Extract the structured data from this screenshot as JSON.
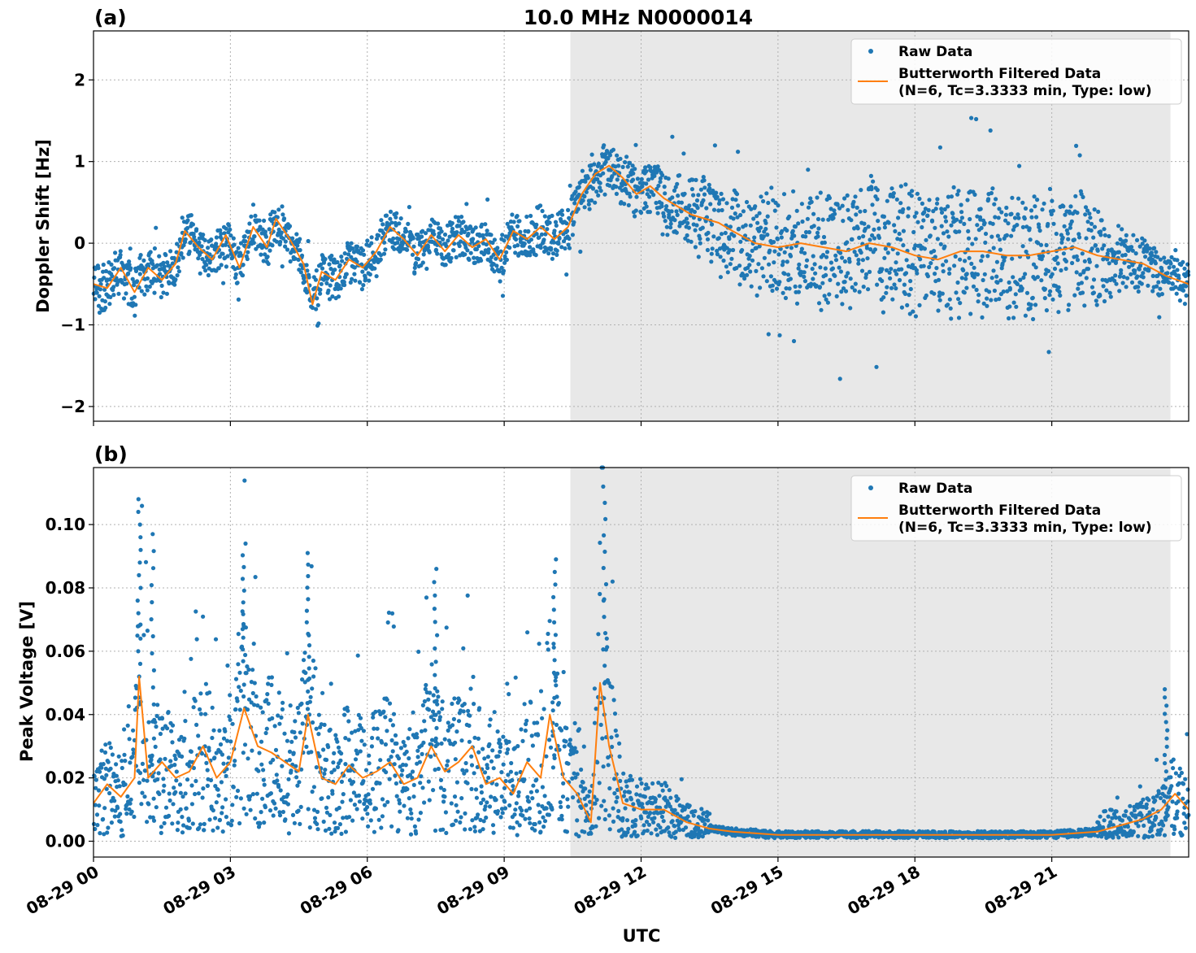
{
  "title": "10.0 MHz N0000014",
  "xlabel": "UTC",
  "x_tick_labels": [
    "08-29 00",
    "08-29 03",
    "08-29 06",
    "08-29 09",
    "08-29 12",
    "08-29 15",
    "08-29 18",
    "08-29 21"
  ],
  "shaded_region_hours": [
    10.45,
    23.6
  ],
  "colors": {
    "raw": "#1f77b4",
    "filtered": "#ff7f0e",
    "shade": "#e8e8e8",
    "grid": "#b0b0b0"
  },
  "legend": {
    "raw": "Raw Data",
    "filtered_line1": "Butterworth Filtered Data",
    "filtered_line2": "(N=6, Tc=3.3333 min, Type: low)"
  },
  "chart_data": [
    {
      "type": "scatter",
      "panel_label": "(a)",
      "ylabel": "Doppler Shift [Hz]",
      "x_unit": "hours UTC on 08-29",
      "xlim": [
        0,
        24
      ],
      "ylim": [
        -2.18,
        2.6
      ],
      "y_ticks": [
        -2,
        -1,
        0,
        1,
        2
      ],
      "y_tick_labels": [
        "−2",
        "−1",
        "0",
        "1",
        "2"
      ],
      "grid": true,
      "legend_position": "top-right",
      "series": [
        {
          "name": "Butterworth Filtered Data",
          "type": "line",
          "x": [
            0,
            0.3,
            0.6,
            0.9,
            1.2,
            1.5,
            1.8,
            2.0,
            2.3,
            2.6,
            2.9,
            3.2,
            3.5,
            3.8,
            4.0,
            4.3,
            4.6,
            4.8,
            5.0,
            5.3,
            5.6,
            5.9,
            6.2,
            6.5,
            6.8,
            7.1,
            7.4,
            7.7,
            8.0,
            8.3,
            8.6,
            8.9,
            9.2,
            9.5,
            9.8,
            10.1,
            10.4,
            10.7,
            11.0,
            11.3,
            11.6,
            11.9,
            12.2,
            12.5,
            12.8,
            13.1,
            13.4,
            13.7,
            14.0,
            14.5,
            15.0,
            15.5,
            16.0,
            16.5,
            17.0,
            17.5,
            18.0,
            18.5,
            19.0,
            19.5,
            20.0,
            20.5,
            21.0,
            21.5,
            22.0,
            22.5,
            23.0,
            23.5,
            24.0
          ],
          "y": [
            -0.5,
            -0.55,
            -0.3,
            -0.6,
            -0.3,
            -0.45,
            -0.25,
            0.15,
            -0.05,
            -0.2,
            0.1,
            -0.3,
            0.2,
            -0.05,
            0.3,
            0.05,
            -0.25,
            -0.75,
            -0.35,
            -0.45,
            -0.2,
            -0.3,
            -0.1,
            0.2,
            0.05,
            -0.15,
            0.1,
            -0.1,
            0.1,
            -0.05,
            0.05,
            -0.2,
            0.15,
            0.05,
            0.2,
            0.05,
            0.2,
            0.6,
            0.85,
            0.95,
            0.8,
            0.6,
            0.7,
            0.55,
            0.45,
            0.35,
            0.3,
            0.25,
            0.15,
            0.0,
            -0.05,
            0.0,
            -0.05,
            -0.1,
            0.0,
            -0.05,
            -0.15,
            -0.2,
            -0.1,
            -0.1,
            -0.15,
            -0.15,
            -0.1,
            -0.05,
            -0.15,
            -0.2,
            -0.25,
            -0.4,
            -0.5
          ]
        },
        {
          "name": "Raw Data",
          "type": "scatter",
          "spread_envelope_x": [
            0,
            3,
            6,
            9,
            10.4,
            11.5,
            12.5,
            13.5,
            14.5,
            16,
            18,
            20,
            21.5,
            22.5,
            23.5,
            24
          ],
          "spread_envelope_halfwidth": [
            0.35,
            0.3,
            0.3,
            0.3,
            0.35,
            0.35,
            0.45,
            0.55,
            0.7,
            0.85,
            0.9,
            0.9,
            0.8,
            0.55,
            0.3,
            0.3
          ]
        }
      ]
    },
    {
      "type": "scatter",
      "panel_label": "(b)",
      "ylabel": "Peak Voltage [V]",
      "x_unit": "hours UTC on 08-29",
      "xlim": [
        0,
        24
      ],
      "ylim": [
        -0.005,
        0.118
      ],
      "y_ticks": [
        0.0,
        0.02,
        0.04,
        0.06,
        0.08,
        0.1
      ],
      "y_tick_labels": [
        "0.00",
        "0.02",
        "0.04",
        "0.06",
        "0.08",
        "0.10"
      ],
      "grid": true,
      "legend_position": "top-right",
      "series": [
        {
          "name": "Butterworth Filtered Data",
          "type": "line",
          "x": [
            0,
            0.3,
            0.6,
            0.9,
            1.0,
            1.2,
            1.5,
            1.8,
            2.1,
            2.4,
            2.7,
            3.0,
            3.3,
            3.6,
            3.9,
            4.2,
            4.5,
            4.7,
            5.0,
            5.3,
            5.6,
            5.9,
            6.2,
            6.5,
            6.8,
            7.1,
            7.4,
            7.7,
            8.0,
            8.3,
            8.6,
            8.9,
            9.2,
            9.5,
            9.8,
            10.0,
            10.3,
            10.6,
            10.9,
            11.1,
            11.3,
            11.6,
            12.0,
            12.5,
            13.0,
            13.5,
            14.0,
            15.0,
            16.0,
            17.0,
            18.0,
            19.0,
            20.0,
            21.0,
            22.0,
            22.5,
            23.0,
            23.4,
            23.7,
            24.0
          ],
          "y": [
            0.012,
            0.018,
            0.014,
            0.02,
            0.052,
            0.02,
            0.025,
            0.02,
            0.022,
            0.03,
            0.02,
            0.025,
            0.042,
            0.03,
            0.028,
            0.025,
            0.022,
            0.04,
            0.02,
            0.018,
            0.024,
            0.02,
            0.022,
            0.025,
            0.018,
            0.02,
            0.03,
            0.022,
            0.025,
            0.03,
            0.018,
            0.02,
            0.015,
            0.025,
            0.02,
            0.04,
            0.02,
            0.015,
            0.006,
            0.05,
            0.03,
            0.012,
            0.01,
            0.01,
            0.006,
            0.004,
            0.003,
            0.002,
            0.002,
            0.002,
            0.002,
            0.002,
            0.002,
            0.002,
            0.003,
            0.005,
            0.007,
            0.01,
            0.015,
            0.01
          ]
        },
        {
          "name": "Raw Data",
          "type": "scatter",
          "peaks_x": [
            1.0,
            1.3,
            3.3,
            4.7,
            7.5,
            10.1,
            11.2,
            23.5
          ],
          "peaks_y": [
            0.108,
            0.097,
            0.094,
            0.091,
            0.086,
            0.089,
            0.112,
            0.048
          ]
        }
      ]
    }
  ]
}
